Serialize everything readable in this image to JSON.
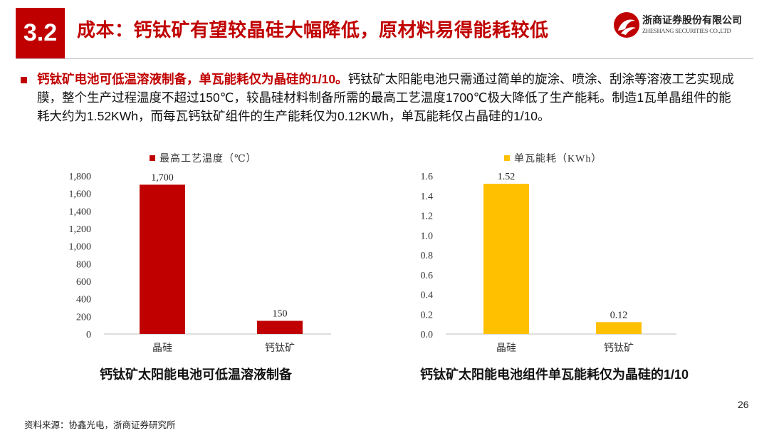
{
  "header": {
    "section_number": "3.2",
    "title": "成本：钙钛矿有望较晶硅大幅降低，原材料易得能耗较低",
    "logo": {
      "company_cn": "浙商证券股份有限公司",
      "company_en": "ZHESHANG SECURITIES CO.,LTD",
      "brand_color": "#c00000"
    }
  },
  "bullet": {
    "lead": "钙钛矿电池可低温溶液制备，单瓦能耗仅为晶硅的1/10。",
    "body": "钙钛矿太阳能电池只需通过简单的旋涂、喷涂、刮涂等溶液工艺实现成膜，整个生产过程温度不超过150℃，较晶硅材料制备所需的最高工艺温度1700℃极大降低了生产能耗。制造1瓦单晶组件的能耗大约为1.52KWh，而每瓦钙钛矿组件的生产能耗仅为0.12KWh，单瓦能耗仅占晶硅的1/10。"
  },
  "chart_data": [
    {
      "type": "bar",
      "title": "",
      "categories": [
        "晶硅",
        "钙钛矿"
      ],
      "series": [
        {
          "name": "最高工艺温度（℃）",
          "values": [
            1700,
            150
          ],
          "color": "#c00000"
        }
      ],
      "data_labels": [
        "1,700",
        "150"
      ],
      "yticks": [
        "0",
        "200",
        "400",
        "600",
        "800",
        "1,000",
        "1,200",
        "1,400",
        "1,600",
        "1,800"
      ],
      "ylim": [
        0,
        1800
      ],
      "legend_position": "top",
      "grid": false,
      "caption": "钙钛矿太阳能电池可低温溶液制备"
    },
    {
      "type": "bar",
      "title": "",
      "categories": [
        "晶硅",
        "钙钛矿"
      ],
      "series": [
        {
          "name": "单瓦能耗（KWh）",
          "values": [
            1.52,
            0.12
          ],
          "color": "#ffc000"
        }
      ],
      "data_labels": [
        "1.52",
        "0.12"
      ],
      "yticks": [
        "0.0",
        "0.2",
        "0.4",
        "0.6",
        "0.8",
        "1.0",
        "1.2",
        "1.4",
        "1.6"
      ],
      "ylim": [
        0,
        1.6
      ],
      "legend_position": "top",
      "grid": false,
      "caption": "钙钛矿太阳能电池组件单瓦能耗仅为晶硅的1/10"
    }
  ],
  "footer": {
    "page_number": "26",
    "source": "资料来源：协鑫光电，浙商证券研究所"
  }
}
